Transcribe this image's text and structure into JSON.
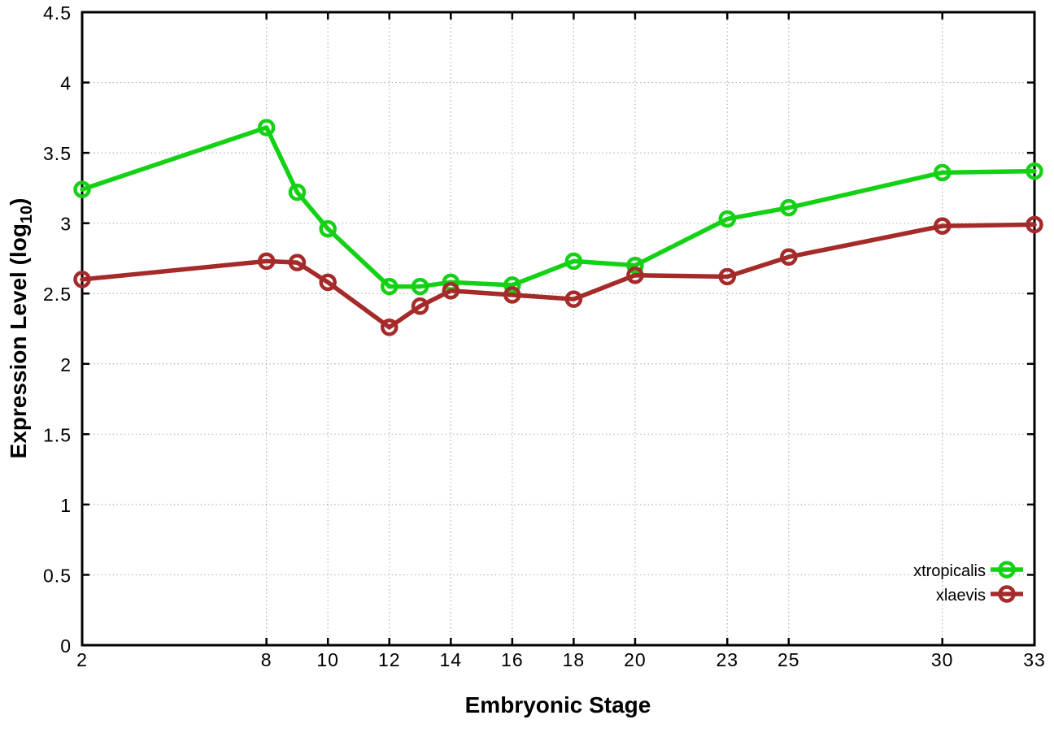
{
  "chart_data": {
    "type": "line",
    "title": "",
    "xlabel": "Embryonic Stage",
    "ylabel": "Expression Level (log10)",
    "ylabel_parts": {
      "prefix": "Expression Level (log",
      "sub": "10",
      "suffix": ")"
    },
    "x": [
      2,
      8,
      9,
      10,
      12,
      13,
      14,
      16,
      18,
      20,
      23,
      25,
      30,
      33
    ],
    "series": [
      {
        "name": "xtropicalis",
        "color": "#15d115",
        "values": [
          3.24,
          3.68,
          3.22,
          2.96,
          2.55,
          2.55,
          2.58,
          2.56,
          2.73,
          2.7,
          3.03,
          3.11,
          3.36,
          3.37
        ]
      },
      {
        "name": "xlaevis",
        "color": "#a52a2a",
        "values": [
          2.6,
          2.73,
          2.72,
          2.58,
          2.26,
          2.41,
          2.52,
          2.49,
          2.46,
          2.63,
          2.62,
          2.76,
          2.98,
          2.99
        ]
      }
    ],
    "xlim": [
      2,
      33
    ],
    "ylim": [
      0,
      4.5
    ],
    "x_ticks": [
      2,
      8,
      10,
      12,
      14,
      16,
      18,
      20,
      23,
      25,
      30,
      33
    ],
    "y_ticks": [
      0,
      0.5,
      1,
      1.5,
      2,
      2.5,
      3,
      3.5,
      4,
      4.5
    ],
    "grid": true,
    "grid_color": "#b3b3b3",
    "axis_color": "#000000",
    "background": "#ffffff",
    "marker": "open-circle",
    "legend_position": "bottom-right"
  }
}
